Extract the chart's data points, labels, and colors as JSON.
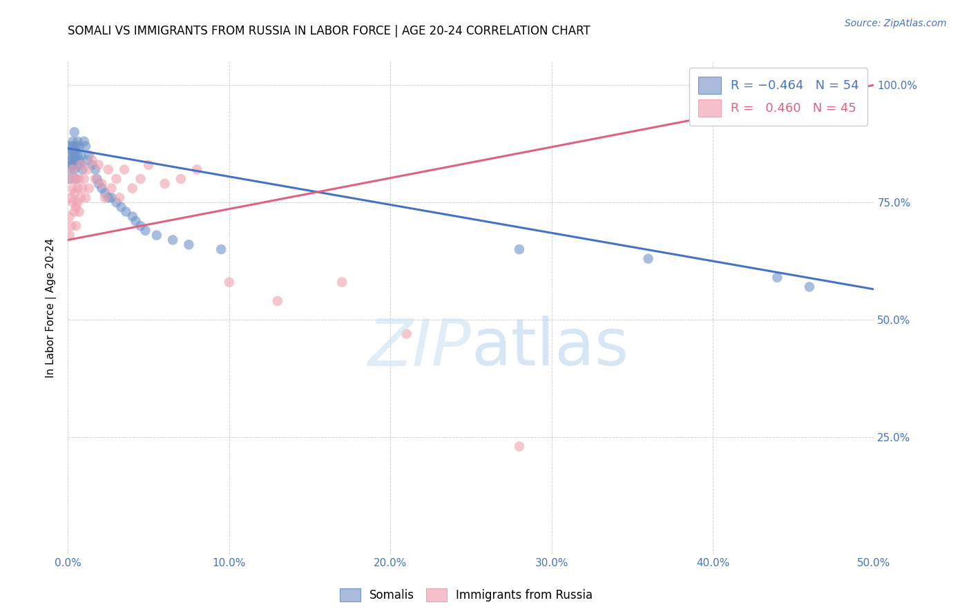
{
  "title": "SOMALI VS IMMIGRANTS FROM RUSSIA IN LABOR FORCE | AGE 20-24 CORRELATION CHART",
  "source": "Source: ZipAtlas.com",
  "ylabel": "In Labor Force | Age 20-24",
  "xlim": [
    0.0,
    0.5
  ],
  "ylim": [
    0.0,
    1.05
  ],
  "xticks": [
    0.0,
    0.1,
    0.2,
    0.3,
    0.4,
    0.5
  ],
  "yticks": [
    0.0,
    0.25,
    0.5,
    0.75,
    1.0
  ],
  "xticklabels": [
    "0.0%",
    "10.0%",
    "20.0%",
    "30.0%",
    "40.0%",
    "50.0%"
  ],
  "yticklabels_right": [
    "",
    "25.0%",
    "50.0%",
    "75.0%",
    "100.0%"
  ],
  "somali_color": "#7094c8",
  "russia_color": "#f0a0b0",
  "somali_line_color": "#4472c4",
  "russia_line_color": "#e06080",
  "R_somali": -0.464,
  "N_somali": 54,
  "R_russia": 0.46,
  "N_russia": 45,
  "legend_entries": [
    "Somalis",
    "Immigrants from Russia"
  ],
  "somali_x": [
    0.001,
    0.001,
    0.001,
    0.002,
    0.002,
    0.002,
    0.002,
    0.003,
    0.003,
    0.003,
    0.003,
    0.003,
    0.004,
    0.004,
    0.004,
    0.005,
    0.005,
    0.005,
    0.005,
    0.006,
    0.006,
    0.006,
    0.007,
    0.007,
    0.008,
    0.008,
    0.009,
    0.01,
    0.011,
    0.012,
    0.013,
    0.015,
    0.017,
    0.018,
    0.019,
    0.021,
    0.023,
    0.025,
    0.027,
    0.03,
    0.033,
    0.036,
    0.04,
    0.042,
    0.045,
    0.048,
    0.055,
    0.065,
    0.075,
    0.095,
    0.28,
    0.36,
    0.44,
    0.46
  ],
  "somali_y": [
    0.84,
    0.87,
    0.8,
    0.86,
    0.83,
    0.85,
    0.82,
    0.88,
    0.86,
    0.84,
    0.87,
    0.83,
    0.85,
    0.82,
    0.9,
    0.87,
    0.84,
    0.8,
    0.86,
    0.85,
    0.83,
    0.88,
    0.87,
    0.84,
    0.85,
    0.83,
    0.82,
    0.88,
    0.87,
    0.84,
    0.85,
    0.83,
    0.82,
    0.8,
    0.79,
    0.78,
    0.77,
    0.76,
    0.76,
    0.75,
    0.74,
    0.73,
    0.72,
    0.71,
    0.7,
    0.69,
    0.68,
    0.67,
    0.66,
    0.65,
    0.65,
    0.63,
    0.59,
    0.57
  ],
  "russia_x": [
    0.001,
    0.001,
    0.002,
    0.002,
    0.002,
    0.003,
    0.003,
    0.003,
    0.004,
    0.004,
    0.005,
    0.005,
    0.005,
    0.006,
    0.006,
    0.007,
    0.007,
    0.008,
    0.008,
    0.009,
    0.01,
    0.011,
    0.012,
    0.013,
    0.015,
    0.017,
    0.019,
    0.021,
    0.023,
    0.025,
    0.027,
    0.03,
    0.032,
    0.035,
    0.04,
    0.045,
    0.05,
    0.06,
    0.07,
    0.08,
    0.1,
    0.13,
    0.17,
    0.21,
    0.28
  ],
  "russia_y": [
    0.68,
    0.72,
    0.7,
    0.76,
    0.8,
    0.75,
    0.78,
    0.82,
    0.73,
    0.77,
    0.7,
    0.74,
    0.8,
    0.75,
    0.78,
    0.73,
    0.8,
    0.76,
    0.83,
    0.78,
    0.8,
    0.76,
    0.82,
    0.78,
    0.84,
    0.8,
    0.83,
    0.79,
    0.76,
    0.82,
    0.78,
    0.8,
    0.76,
    0.82,
    0.78,
    0.8,
    0.83,
    0.79,
    0.8,
    0.82,
    0.58,
    0.54,
    0.58,
    0.47,
    0.23
  ],
  "somali_trendline_x": [
    0.0,
    0.5
  ],
  "somali_trendline_y": [
    0.865,
    0.565
  ],
  "russia_trendline_x": [
    0.0,
    0.5
  ],
  "russia_trendline_y": [
    0.67,
    1.0
  ]
}
